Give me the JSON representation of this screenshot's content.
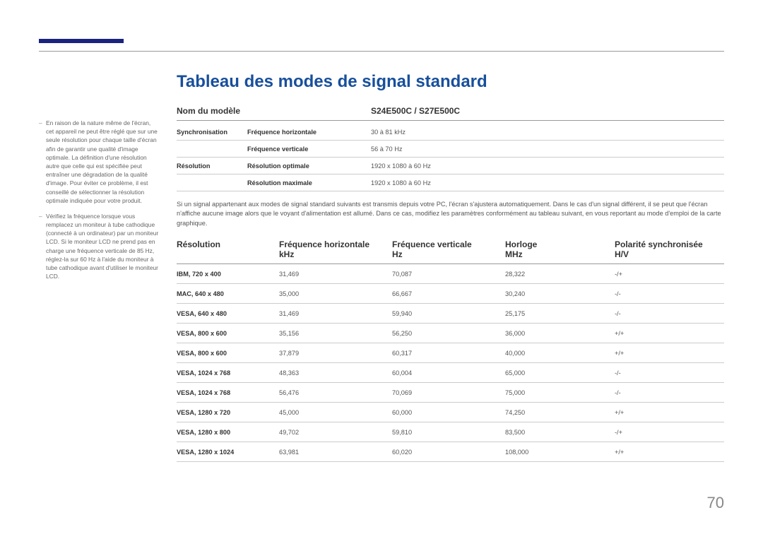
{
  "title": "Tableau des modes de signal standard",
  "page_number": "70",
  "accent_color": "#1a237e",
  "title_color": "#184f9c",
  "sidebar": {
    "note1": "En raison de la nature même de l'écran, cet appareil ne peut être réglé que sur une seule résolution pour chaque taille d'écran afin de garantir une qualité d'image optimale. La définition d'une résolution autre que celle qui est spécifiée peut entraîner une dégradation de la qualité d'image. Pour éviter ce problème, il est conseillé de sélectionner la résolution optimale indiquée pour votre produit.",
    "note2": "Vérifiez la fréquence lorsque vous remplacez un moniteur à tube cathodique (connecté à un ordinateur) par un moniteur LCD. Si le moniteur LCD ne prend pas en charge une fréquence verticale de 85 Hz, réglez-la sur 60 Hz à l'aide du moniteur à tube cathodique avant d'utiliser le moniteur LCD."
  },
  "spec": {
    "head_model": "Nom du modèle",
    "head_value": "S24E500C / S27E500C",
    "rows": [
      {
        "c1": "Synchronisation",
        "c2": "Fréquence horizontale",
        "c3": "30 à 81 kHz"
      },
      {
        "c1": "",
        "c2": "Fréquence verticale",
        "c3": "56 à 70 Hz"
      },
      {
        "c1": "Résolution",
        "c2": "Résolution optimale",
        "c3": "1920 x 1080 à 60 Hz"
      },
      {
        "c1": "",
        "c2": "Résolution maximale",
        "c3": "1920 x 1080 à 60 Hz"
      }
    ]
  },
  "paragraph": "Si un signal appartenant aux modes de signal standard suivants est transmis depuis votre PC, l'écran s'ajustera automatiquement. Dans le cas d'un signal différent, il se peut que l'écran n'affiche aucune image alors que le voyant d'alimentation est allumé. Dans ce cas, modifiez les paramètres conformément au tableau suivant, en vous reportant au mode d'emploi de la carte graphique.",
  "table": {
    "headers": {
      "res": "Résolution",
      "fh": "Fréquence horizontale kHz",
      "fv": "Fréquence verticale Hz",
      "hz": "Horloge MHz",
      "pol": "Polarité synchronisée H/V"
    },
    "headers2": {
      "res": "Résolution",
      "fh1": "Fréquence horizontale",
      "fh2": "kHz",
      "fv1": "Fréquence verticale",
      "fv2": "Hz",
      "hz1": "Horloge",
      "hz2": "MHz",
      "pol1": "Polarité synchronisée",
      "pol2": "H/V"
    },
    "rows": [
      {
        "res": "IBM, 720 x 400",
        "fh": "31,469",
        "fv": "70,087",
        "hz": "28,322",
        "pol": "-/+"
      },
      {
        "res": "MAC, 640 x 480",
        "fh": "35,000",
        "fv": "66,667",
        "hz": "30,240",
        "pol": "-/-"
      },
      {
        "res": "VESA, 640 x 480",
        "fh": "31,469",
        "fv": "59,940",
        "hz": "25,175",
        "pol": "-/-"
      },
      {
        "res": "VESA, 800 x 600",
        "fh": "35,156",
        "fv": "56,250",
        "hz": "36,000",
        "pol": "+/+"
      },
      {
        "res": "VESA, 800 x 600",
        "fh": "37,879",
        "fv": "60,317",
        "hz": "40,000",
        "pol": "+/+"
      },
      {
        "res": "VESA, 1024 x 768",
        "fh": "48,363",
        "fv": "60,004",
        "hz": "65,000",
        "pol": "-/-"
      },
      {
        "res": "VESA, 1024 x 768",
        "fh": "56,476",
        "fv": "70,069",
        "hz": "75,000",
        "pol": "-/-"
      },
      {
        "res": "VESA, 1280 x 720",
        "fh": "45,000",
        "fv": "60,000",
        "hz": "74,250",
        "pol": "+/+"
      },
      {
        "res": "VESA, 1280 x 800",
        "fh": "49,702",
        "fv": "59,810",
        "hz": "83,500",
        "pol": "-/+"
      },
      {
        "res": "VESA, 1280 x 1024",
        "fh": "63,981",
        "fv": "60,020",
        "hz": "108,000",
        "pol": "+/+"
      }
    ]
  }
}
